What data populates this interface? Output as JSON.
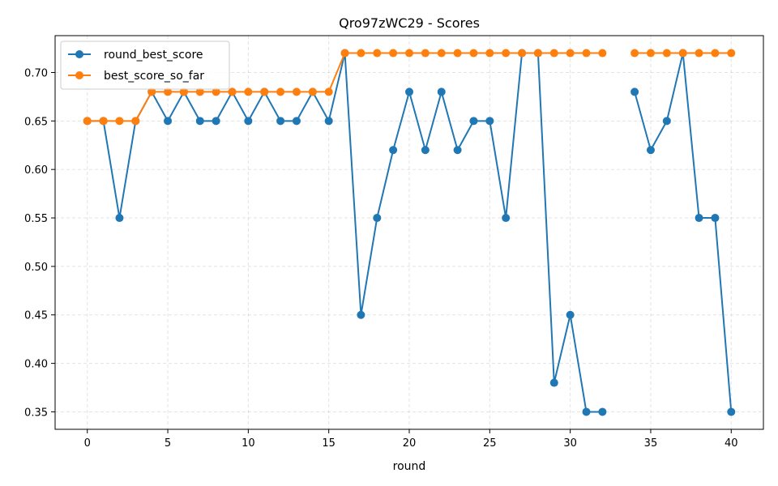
{
  "chart_data": {
    "type": "line",
    "title": "Qro97zWC29 - Scores",
    "xlabel": "round",
    "ylabel": "",
    "x": [
      0,
      1,
      2,
      3,
      4,
      5,
      6,
      7,
      8,
      9,
      10,
      11,
      12,
      13,
      14,
      15,
      16,
      17,
      18,
      19,
      20,
      21,
      22,
      23,
      24,
      25,
      26,
      27,
      28,
      29,
      30,
      31,
      32,
      33,
      34,
      35,
      36,
      37,
      38,
      39,
      40
    ],
    "xlim": [
      -2,
      42
    ],
    "ylim": [
      0.332,
      0.738
    ],
    "xticks": [
      0,
      5,
      10,
      15,
      20,
      25,
      30,
      35,
      40
    ],
    "yticks": [
      0.35,
      0.4,
      0.45,
      0.5,
      0.55,
      0.6,
      0.65,
      0.7
    ],
    "ytick_labels": [
      "0.35",
      "0.40",
      "0.45",
      "0.50",
      "0.55",
      "0.60",
      "0.65",
      "0.70"
    ],
    "grid": true,
    "legend_position": "top-left",
    "series": [
      {
        "name": "round_best_score",
        "color": "#1f77b4",
        "values": [
          0.65,
          0.65,
          0.55,
          0.65,
          0.68,
          0.65,
          0.68,
          0.65,
          0.65,
          0.68,
          0.65,
          0.68,
          0.65,
          0.65,
          0.68,
          0.65,
          0.72,
          0.45,
          0.55,
          0.62,
          0.68,
          0.62,
          0.68,
          0.62,
          0.65,
          0.65,
          0.55,
          0.72,
          0.72,
          0.38,
          0.45,
          0.35,
          0.35,
          null,
          0.68,
          0.62,
          0.65,
          0.72,
          0.55,
          0.55,
          0.35
        ]
      },
      {
        "name": "best_score_so_far",
        "color": "#ff7f0e",
        "values": [
          0.65,
          0.65,
          0.65,
          0.65,
          0.68,
          0.68,
          0.68,
          0.68,
          0.68,
          0.68,
          0.68,
          0.68,
          0.68,
          0.68,
          0.68,
          0.68,
          0.72,
          0.72,
          0.72,
          0.72,
          0.72,
          0.72,
          0.72,
          0.72,
          0.72,
          0.72,
          0.72,
          0.72,
          0.72,
          0.72,
          0.72,
          0.72,
          0.72,
          null,
          0.72,
          0.72,
          0.72,
          0.72,
          0.72,
          0.72,
          0.72
        ]
      }
    ]
  }
}
